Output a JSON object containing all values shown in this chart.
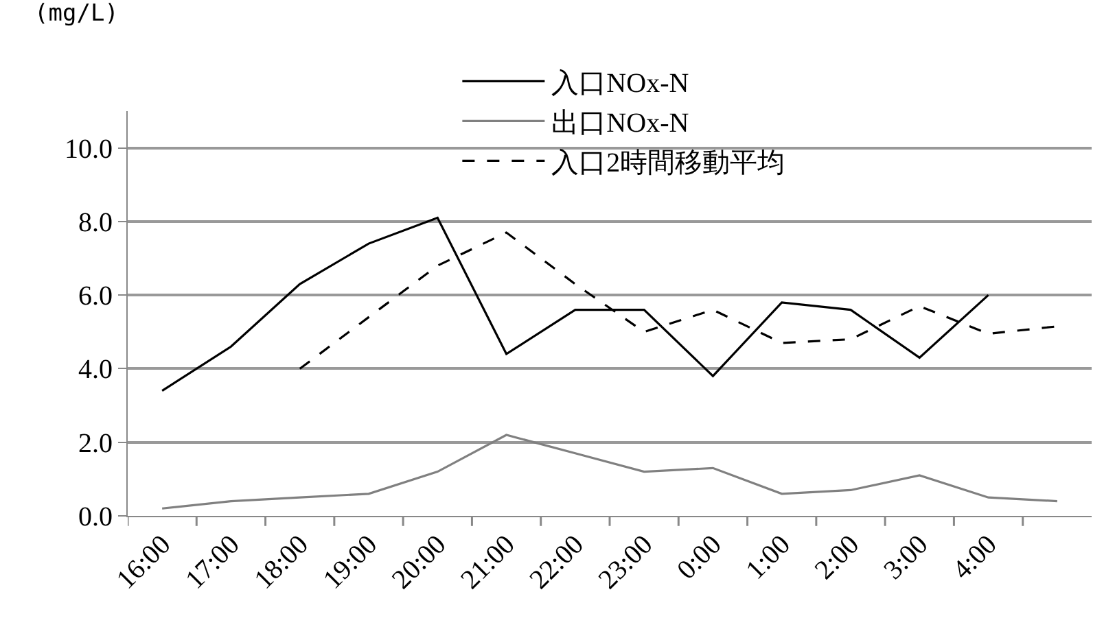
{
  "chart_data": {
    "type": "line",
    "ylabel": "(mg/L)",
    "categories": [
      "16:00",
      "17:00",
      "18:00",
      "19:00",
      "20:00",
      "21:00",
      "22:00",
      "23:00",
      "0:00",
      "1:00",
      "2:00",
      "3:00",
      "4:00",
      null
    ],
    "series": [
      {
        "name": "入口NOx-N",
        "color": "#000000",
        "line_style": "solid",
        "values": [
          3.4,
          4.6,
          6.3,
          7.4,
          8.1,
          4.4,
          5.6,
          5.6,
          3.8,
          5.8,
          5.6,
          4.3,
          6.0,
          null
        ]
      },
      {
        "name": "出口NOx-N",
        "color": "#808080",
        "line_style": "solid",
        "values": [
          0.2,
          0.4,
          0.5,
          0.6,
          1.2,
          2.2,
          1.7,
          1.2,
          1.3,
          0.6,
          0.7,
          1.1,
          0.5,
          0.4
        ]
      },
      {
        "name": "入口2時間移動平均",
        "color": "#000000",
        "line_style": "dashed",
        "values": [
          null,
          null,
          4.0,
          5.4,
          6.8,
          7.7,
          6.3,
          5.0,
          5.6,
          4.7,
          4.8,
          5.7,
          4.95,
          5.15
        ]
      }
    ],
    "ylim": [
      0,
      11
    ],
    "yticks": [
      {
        "value": 0,
        "label": "0.0"
      },
      {
        "value": 2,
        "label": "2.0"
      },
      {
        "value": 4,
        "label": "4.0"
      },
      {
        "value": 6,
        "label": "6.0"
      },
      {
        "value": 8,
        "label": "8.0"
      },
      {
        "value": 10,
        "label": "10.0"
      }
    ],
    "grid": "y",
    "legend": "top",
    "marker": "none"
  }
}
